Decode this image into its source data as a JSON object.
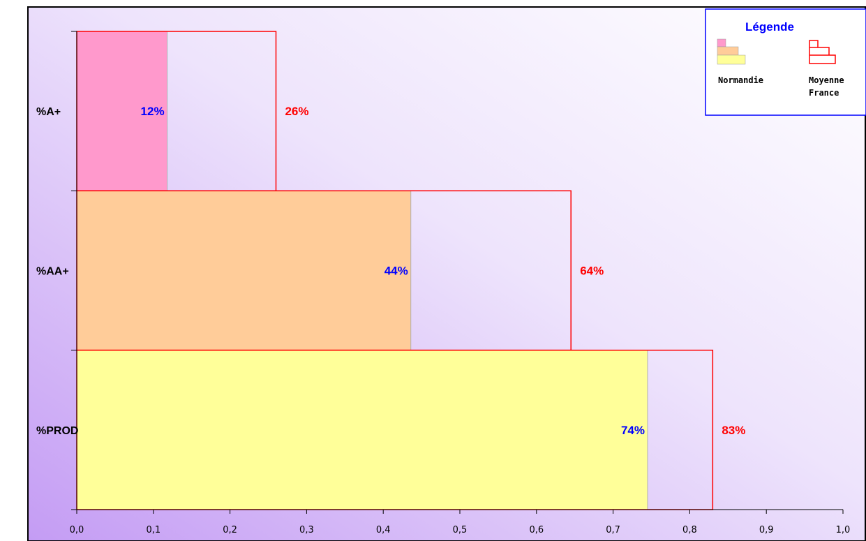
{
  "chart_data": {
    "type": "bar",
    "orientation": "horizontal",
    "categories": [
      "%A+",
      "%AA+",
      "%PROD"
    ],
    "series": [
      {
        "name": "Normandie",
        "values": [
          0.118,
          0.436,
          0.745
        ],
        "labels": [
          "12%",
          "44%",
          "74%"
        ]
      },
      {
        "name": "Moyenne France",
        "values": [
          0.26,
          0.645,
          0.83
        ],
        "labels": [
          "26%",
          "64%",
          "83%"
        ]
      }
    ],
    "category_colors": [
      "#ff99cc",
      "#ffcc99",
      "#ffff99"
    ],
    "xlim": [
      0,
      1
    ],
    "xticks": [
      "0,0",
      "0,1",
      "0,2",
      "0,3",
      "0,4",
      "0,5",
      "0,6",
      "0,7",
      "0,8",
      "0,9",
      "1,0"
    ],
    "grid": false,
    "legend": {
      "title": "Légende",
      "position": "top-right",
      "normandie_label": "Normandie",
      "france_label_line1": "Moyenne",
      "france_label_line2": "France"
    }
  },
  "colors": {
    "normandie_text": "#0000ff",
    "france_text": "#ff0000",
    "france_outline": "#ff0000",
    "plot_bg_light": "#ffffff",
    "plot_bg_dark": "#c49cf4"
  }
}
